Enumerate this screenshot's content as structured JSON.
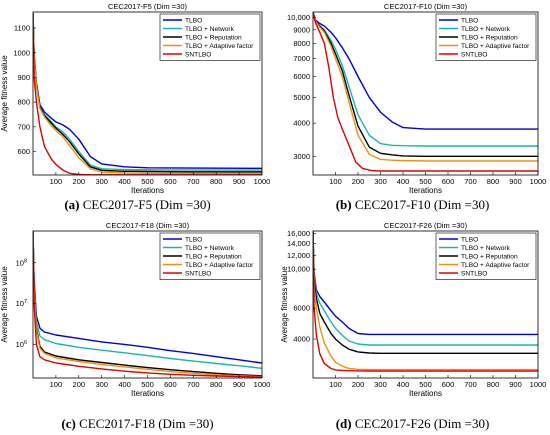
{
  "series_names": [
    "TLBO",
    "TLBO + Network",
    "TLBO + Reputation",
    "TLBO + Adaptive factor",
    "SNTLBO"
  ],
  "series_colors": [
    "#0000d8",
    "#14b8b0",
    "#000000",
    "#f0900a",
    "#e00000"
  ],
  "captions": [
    {
      "letter": "(a)",
      "text": "CEC2017-F5 (Dim =30)"
    },
    {
      "letter": "(b)",
      "text": "CEC2017-F10 (Dim =30)"
    },
    {
      "letter": "(c)",
      "text": "CEC2017-F18 (Dim =30)"
    },
    {
      "letter": "(d)",
      "text": "CEC2017-F26 (Dim =30)"
    }
  ],
  "chart_data": [
    {
      "type": "line",
      "title": "CEC2017-F5 (Dim =30)",
      "xlabel": "Iterations",
      "ylabel": "Average fitness value",
      "xlim": [
        0,
        1000
      ],
      "ylim": [
        505,
        1165
      ],
      "yscale": "linear",
      "xticks": [
        100,
        200,
        300,
        400,
        500,
        600,
        700,
        800,
        900,
        1000
      ],
      "yticks": [
        600,
        700,
        800,
        900,
        1000,
        1100
      ],
      "ytick_labels": [
        "600",
        "700",
        "800",
        "900",
        "1000",
        "1100"
      ],
      "legend_position": "top-right",
      "grid": false,
      "series": [
        {
          "name": "TLBO",
          "x": [
            0,
            5,
            15,
            30,
            50,
            80,
            100,
            130,
            160,
            200,
            250,
            300,
            400,
            500,
            700,
            1000
          ],
          "y": [
            1160,
            1000,
            880,
            790,
            760,
            735,
            720,
            708,
            690,
            650,
            580,
            550,
            538,
            534,
            533,
            532
          ]
        },
        {
          "name": "TLBO + Network",
          "x": [
            0,
            5,
            15,
            30,
            50,
            80,
            100,
            130,
            160,
            200,
            250,
            300,
            400,
            500,
            700,
            1000
          ],
          "y": [
            1160,
            990,
            870,
            780,
            750,
            720,
            700,
            680,
            650,
            600,
            545,
            530,
            527,
            526,
            525,
            525
          ]
        },
        {
          "name": "TLBO + Reputation",
          "x": [
            0,
            5,
            15,
            30,
            50,
            80,
            100,
            130,
            160,
            200,
            250,
            300,
            400,
            500,
            700,
            1000
          ],
          "y": [
            1160,
            990,
            870,
            780,
            745,
            715,
            695,
            670,
            640,
            590,
            538,
            524,
            520,
            519,
            518,
            518
          ]
        },
        {
          "name": "TLBO + Adaptive factor",
          "x": [
            0,
            5,
            15,
            30,
            50,
            80,
            100,
            130,
            160,
            200,
            250,
            300,
            400,
            500,
            700,
            1000
          ],
          "y": [
            1160,
            985,
            865,
            775,
            740,
            705,
            685,
            660,
            625,
            575,
            530,
            517,
            513,
            512,
            512,
            512
          ]
        },
        {
          "name": "SNTLBO",
          "x": [
            0,
            5,
            15,
            30,
            50,
            80,
            100,
            130,
            160,
            200,
            250,
            300,
            400,
            500,
            700,
            1000
          ],
          "y": [
            1160,
            900,
            800,
            700,
            620,
            570,
            548,
            525,
            512,
            507,
            506,
            506,
            506,
            506,
            506,
            506
          ]
        }
      ]
    },
    {
      "type": "line",
      "title": "CEC2017-F10 (Dim =30)",
      "xlabel": "Iterations",
      "ylabel": "",
      "xlim": [
        0,
        1000
      ],
      "ylim": [
        2550,
        10500
      ],
      "yscale": "log",
      "xticks": [
        100,
        200,
        300,
        400,
        500,
        600,
        700,
        800,
        900,
        1000
      ],
      "yticks": [
        3000,
        4000,
        5000,
        6000,
        7000,
        8000,
        9000,
        10000
      ],
      "ytick_labels": [
        "3000",
        "4000",
        "5000",
        "6000",
        "7000",
        "8000",
        "9000",
        "10,000"
      ],
      "legend_position": "top-right",
      "grid": false,
      "series": [
        {
          "name": "TLBO",
          "x": [
            0,
            10,
            30,
            50,
            80,
            100,
            130,
            160,
            200,
            250,
            300,
            350,
            400,
            500,
            700,
            1000
          ],
          "y": [
            10500,
            9800,
            9500,
            9300,
            8800,
            8400,
            7700,
            7000,
            6000,
            5000,
            4400,
            4050,
            3850,
            3800,
            3800,
            3800
          ]
        },
        {
          "name": "TLBO + Network",
          "x": [
            0,
            10,
            30,
            50,
            80,
            100,
            130,
            160,
            200,
            250,
            300,
            350,
            400,
            500,
            700,
            1000
          ],
          "y": [
            10500,
            9700,
            9300,
            9000,
            8200,
            7600,
            6600,
            5500,
            4300,
            3600,
            3350,
            3300,
            3290,
            3280,
            3280,
            3280
          ]
        },
        {
          "name": "TLBO + Reputation",
          "x": [
            0,
            10,
            30,
            50,
            80,
            100,
            130,
            160,
            200,
            250,
            300,
            350,
            400,
            500,
            700,
            1000
          ],
          "y": [
            10500,
            9700,
            9300,
            8900,
            8000,
            7300,
            6300,
            5100,
            3900,
            3250,
            3080,
            3040,
            3010,
            3000,
            3000,
            3000
          ]
        },
        {
          "name": "TLBO + Adaptive factor",
          "x": [
            0,
            10,
            30,
            50,
            80,
            100,
            130,
            160,
            200,
            250,
            300,
            350,
            400,
            500,
            700,
            1000
          ],
          "y": [
            10500,
            9700,
            9200,
            8800,
            7800,
            7000,
            6000,
            4800,
            3600,
            3050,
            2920,
            2900,
            2890,
            2880,
            2880,
            2880
          ]
        },
        {
          "name": "SNTLBO",
          "x": [
            0,
            10,
            30,
            50,
            70,
            90,
            110,
            130,
            160,
            190,
            220,
            260,
            300,
            400,
            700,
            1000
          ],
          "y": [
            10500,
            9600,
            8800,
            8000,
            6500,
            5000,
            4200,
            3800,
            3300,
            2850,
            2700,
            2650,
            2640,
            2640,
            2640,
            2640
          ]
        }
      ]
    },
    {
      "type": "line",
      "title": "CEC2017-F18 (Dim =30)",
      "xlabel": "Iterations",
      "ylabel": "Average fitness value",
      "xlim": [
        0,
        1000
      ],
      "ylim": [
        150000,
        600000000
      ],
      "yscale": "log",
      "xticks": [
        100,
        200,
        300,
        400,
        500,
        600,
        700,
        800,
        900,
        1000
      ],
      "yticks": [
        1000000,
        10000000,
        100000000
      ],
      "ytick_labels": [
        "10^6",
        "10^7",
        "10^8"
      ],
      "legend_position": "top-right",
      "grid": false,
      "series": [
        {
          "name": "TLBO",
          "x": [
            0,
            5,
            15,
            30,
            50,
            100,
            200,
            300,
            400,
            500,
            600,
            700,
            800,
            900,
            1000
          ],
          "y": [
            600000000,
            40000000,
            5000000,
            2500000,
            2000000,
            1700000,
            1400000,
            1150000,
            1000000,
            850000,
            700000,
            600000,
            500000,
            420000,
            350000
          ]
        },
        {
          "name": "TLBO + Network",
          "x": [
            0,
            5,
            15,
            30,
            50,
            100,
            200,
            300,
            400,
            500,
            600,
            700,
            800,
            900,
            1000
          ],
          "y": [
            600000000,
            30000000,
            3500000,
            1600000,
            1300000,
            1050000,
            850000,
            720000,
            620000,
            530000,
            450000,
            390000,
            340000,
            300000,
            260000
          ]
        },
        {
          "name": "TLBO + Reputation",
          "x": [
            0,
            5,
            15,
            30,
            50,
            100,
            200,
            300,
            400,
            500,
            600,
            700,
            800,
            900,
            1000
          ],
          "y": [
            600000000,
            25000000,
            2500000,
            900000,
            650000,
            520000,
            420000,
            360000,
            310000,
            270000,
            240000,
            215000,
            195000,
            180000,
            170000
          ]
        },
        {
          "name": "TLBO + Adaptive factor",
          "x": [
            0,
            5,
            15,
            30,
            50,
            100,
            200,
            300,
            400,
            500,
            600,
            700,
            800,
            900,
            1000
          ],
          "y": [
            600000000,
            22000000,
            2200000,
            800000,
            600000,
            470000,
            380000,
            320000,
            280000,
            245000,
            215000,
            195000,
            180000,
            170000,
            162000
          ]
        },
        {
          "name": "SNTLBO",
          "x": [
            0,
            5,
            15,
            30,
            50,
            100,
            200,
            300,
            400,
            500,
            600,
            700,
            800,
            900,
            1000
          ],
          "y": [
            600000000,
            10000000,
            1000000,
            500000,
            420000,
            350000,
            290000,
            250000,
            220000,
            200000,
            185000,
            175000,
            168000,
            162000,
            158000
          ]
        }
      ]
    },
    {
      "type": "line",
      "title": "CEC2017-F26 (Dim =30)",
      "xlabel": "Iterations",
      "ylabel": "Average fitness value",
      "xlim": [
        0,
        1000
      ],
      "ylim": [
        2400,
        16500
      ],
      "yscale": "log",
      "xticks": [
        100,
        200,
        300,
        400,
        500,
        600,
        700,
        800,
        900,
        1000
      ],
      "yticks": [
        4000,
        6000,
        10000,
        12000,
        14000,
        16000
      ],
      "ytick_labels": [
        "4000",
        "6000",
        "10,000",
        "12,000",
        "14,000",
        "16,000"
      ],
      "legend_position": "top-right",
      "grid": false,
      "series": [
        {
          "name": "TLBO",
          "x": [
            0,
            5,
            15,
            30,
            50,
            80,
            100,
            130,
            160,
            200,
            250,
            300,
            500,
            700,
            1000
          ],
          "y": [
            16500,
            9500,
            7600,
            7000,
            6500,
            5800,
            5400,
            5000,
            4600,
            4300,
            4250,
            4250,
            4250,
            4250,
            4250
          ]
        },
        {
          "name": "TLBO + Network",
          "x": [
            0,
            5,
            15,
            30,
            50,
            80,
            100,
            130,
            160,
            200,
            250,
            300,
            500,
            700,
            1000
          ],
          "y": [
            16500,
            9000,
            7200,
            6400,
            5800,
            5000,
            4600,
            4200,
            3900,
            3750,
            3700,
            3700,
            3700,
            3700,
            3700
          ]
        },
        {
          "name": "TLBO + Reputation",
          "x": [
            0,
            5,
            15,
            30,
            50,
            80,
            100,
            130,
            160,
            200,
            250,
            300,
            500,
            700,
            1000
          ],
          "y": [
            16500,
            8500,
            6800,
            5600,
            5000,
            4300,
            4000,
            3700,
            3500,
            3380,
            3330,
            3320,
            3320,
            3320,
            3320
          ]
        },
        {
          "name": "TLBO + Adaptive factor",
          "x": [
            0,
            5,
            15,
            30,
            50,
            80,
            100,
            130,
            160,
            200,
            250,
            300,
            500,
            700,
            1000
          ],
          "y": [
            16500,
            8000,
            6000,
            4700,
            3800,
            3200,
            2950,
            2800,
            2720,
            2690,
            2680,
            2680,
            2680,
            2680,
            2680
          ]
        },
        {
          "name": "SNTLBO",
          "x": [
            0,
            5,
            15,
            30,
            50,
            80,
            100,
            130,
            160,
            200,
            250,
            300,
            500,
            700,
            1000
          ],
          "y": [
            16500,
            6000,
            4200,
            3300,
            2900,
            2720,
            2670,
            2650,
            2640,
            2635,
            2630,
            2630,
            2630,
            2630,
            2630
          ]
        }
      ]
    }
  ]
}
